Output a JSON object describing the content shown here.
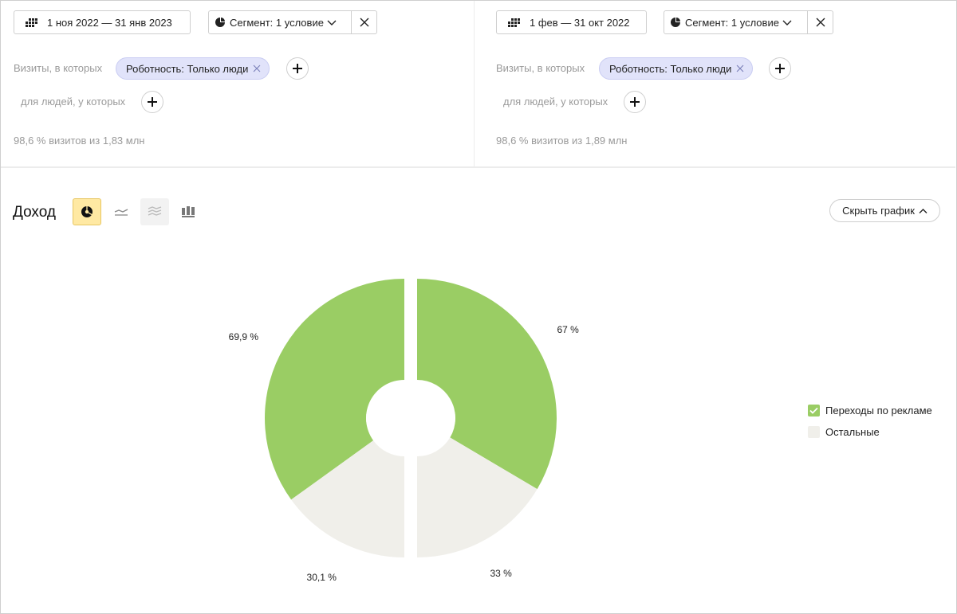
{
  "left_segment": {
    "date_range": "1 ноя 2022 — 31 янв 2023",
    "segment_label": "Сегмент: 1 условие",
    "visits_label": "Визиты, в которых",
    "filter_chip": "Роботность: Только люди",
    "people_label": "для людей, у которых",
    "share": "98,6 % визитов из 1,83 млн"
  },
  "right_segment": {
    "date_range": "1 фев — 31 окт 2022",
    "segment_label": "Сегмент: 1 условие",
    "visits_label": "Визиты, в которых",
    "filter_chip": "Роботность: Только люди",
    "people_label": "для людей, у которых",
    "share": "98,6 % визитов из 1,89 млн"
  },
  "chart_header": {
    "title": "Доход",
    "chart_types": [
      "pie-chart-icon",
      "line-chart-icon",
      "area-chart-icon",
      "bar-chart-icon"
    ],
    "active_type": "pie-chart-icon",
    "hide_button": "Скрыть график"
  },
  "colors": {
    "ads": "#9acd64",
    "other": "#f0efea",
    "chip_bg": "#e1e3fa",
    "active_type_bg": "#ffe9a3"
  },
  "chart_data": {
    "type": "pie",
    "series": [
      {
        "values": [
          69.9,
          30.1
        ],
        "labels": [
          "69,9 %",
          "30,1 %"
        ]
      },
      {
        "values": [
          67,
          33
        ],
        "labels": [
          "67 %",
          "33 %"
        ]
      }
    ],
    "categories": [
      "Переходы по рекламе",
      "Остальные"
    ],
    "legend_position": "right"
  }
}
